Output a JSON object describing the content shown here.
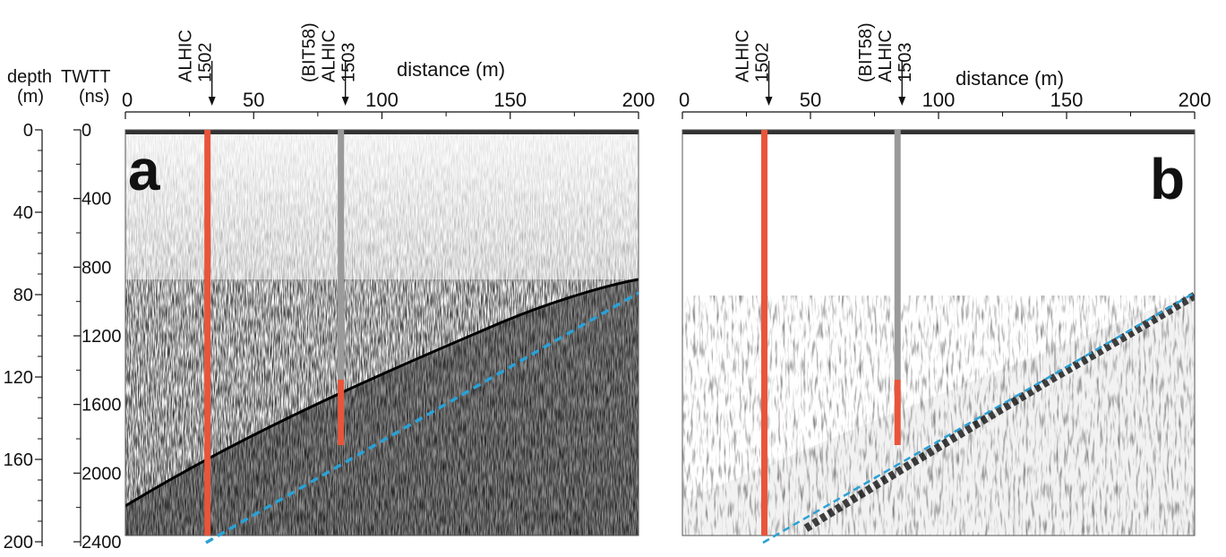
{
  "panels": [
    {
      "id": "a",
      "letter": "a",
      "x_title": "distance (m)",
      "x_ticks": [
        "0",
        "50",
        "100",
        "150",
        "200"
      ],
      "x_range": [
        0,
        200
      ],
      "boreholes": [
        {
          "name": "ALHIC",
          "id": "1502",
          "prefix": "",
          "distance_m": 32
        },
        {
          "name": "ALHIC",
          "id": "1503",
          "prefix": "(BIT58)",
          "distance_m": 84
        }
      ]
    },
    {
      "id": "b",
      "letter": "b",
      "x_title": "distance (m)",
      "x_ticks": [
        "0",
        "50",
        "100",
        "150",
        "200"
      ],
      "x_range": [
        0,
        200
      ],
      "boreholes": [
        {
          "name": "ALHIC",
          "id": "1502",
          "prefix": "",
          "distance_m": 32
        },
        {
          "name": "ALHIC",
          "id": "1503",
          "prefix": "(BIT58)",
          "distance_m": 84
        }
      ]
    }
  ],
  "y_axes": {
    "depth_title_1": "depth",
    "depth_title_2": "(m)",
    "twtt_title_1": "TWTT",
    "twtt_title_2": "(ns)",
    "depth_ticks": [
      "0",
      "40",
      "80",
      "120",
      "160",
      "200"
    ],
    "twtt_ticks": [
      "0",
      "400",
      "800",
      "1200",
      "1600",
      "2000",
      "2400"
    ],
    "depth_range_m": [
      0,
      200
    ],
    "twtt_range_ns": [
      0,
      2400
    ]
  },
  "colors": {
    "borehole_1502": "#e8553a",
    "borehole_1503_upper": "#9a9a9a",
    "borehole_1503_lower": "#e8553a",
    "bed_interface": "#2aa1d6"
  }
}
